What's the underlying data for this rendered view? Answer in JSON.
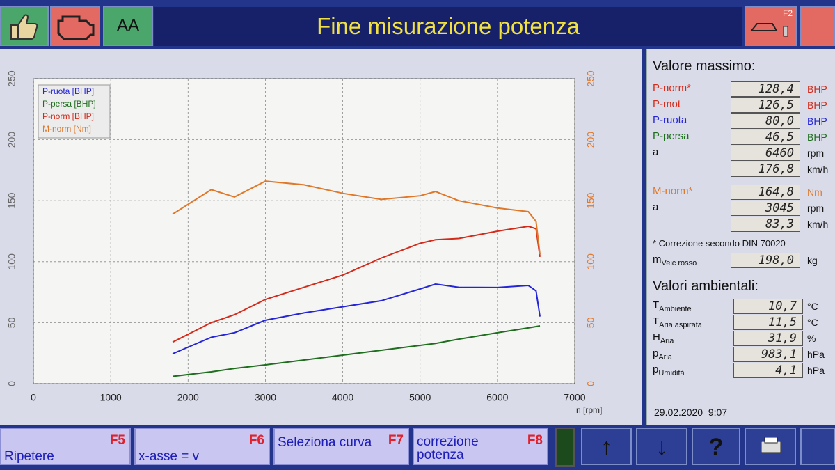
{
  "header": {
    "title": "Fine misurazione potenza",
    "button_label": "AA",
    "f2": "F2"
  },
  "chart_data": {
    "type": "line",
    "x_label": "n [rpm]",
    "x": [
      1800,
      2300,
      2600,
      3000,
      3500,
      4000,
      4500,
      5000,
      5200,
      5500,
      6000,
      6400,
      6500,
      6550
    ],
    "series": [
      {
        "name": "P-ruota [BHP]",
        "color": "#2424d8",
        "values": [
          24.5,
          38,
          41.7,
          52,
          58,
          63,
          68,
          77.6,
          81.6,
          79,
          78.8,
          80.5,
          76,
          55
        ]
      },
      {
        "name": "P-persa [BHP]",
        "color": "#1e6e1e",
        "values": [
          6,
          9.7,
          12.5,
          15.4,
          19.4,
          23.4,
          27.4,
          31.4,
          33,
          36.5,
          41.7,
          45.7,
          46.8,
          47.4
        ]
      },
      {
        "name": "P-norm [BHP]",
        "color": "#d42a1a",
        "values": [
          34,
          50,
          56.5,
          69,
          79,
          89,
          103,
          115,
          118,
          119,
          125,
          129,
          127,
          104
        ]
      },
      {
        "name": "M-norm [Nm]",
        "color": "#e0782a",
        "axis": "y2",
        "values": [
          139,
          159,
          153,
          166,
          163,
          156,
          151,
          154,
          157.5,
          150,
          144,
          141,
          133,
          106
        ]
      }
    ],
    "xlim": [
      0,
      7000
    ],
    "xticks": [
      0,
      1000,
      2000,
      3000,
      4000,
      5000,
      6000,
      7000
    ],
    "ylim": [
      0,
      250
    ],
    "yticks": [
      0,
      50,
      100,
      150,
      200,
      250
    ],
    "y2lim": [
      0,
      250
    ],
    "y2ticks": [
      0,
      50,
      100,
      150,
      200,
      250
    ],
    "grid": true,
    "legend": "upper left"
  },
  "panel": {
    "max_title": "Valore massimo:",
    "max_rows": [
      {
        "label": "P-norm*",
        "value": "128,4",
        "unit": "BHP",
        "color": "#d42a1a"
      },
      {
        "label": "P-mot",
        "value": "126,5",
        "unit": "BHP",
        "color": "#d42a1a"
      },
      {
        "label": "P-ruota",
        "value": "80,0",
        "unit": "BHP",
        "color": "#2424d8"
      },
      {
        "label": "P-persa",
        "value": "46,5",
        "unit": "BHP",
        "color": "#1e6e1e"
      },
      {
        "label": "a",
        "value": "6460",
        "unit": "rpm",
        "color": "#111111"
      },
      {
        "value": "176,8",
        "unit": "km/h",
        "color": "#111111"
      },
      {
        "label": "M-norm*",
        "value": "164,8",
        "unit": "Nm",
        "color": "#e0782a"
      },
      {
        "label": "a",
        "value": "3045",
        "unit": "rpm",
        "color": "#111111"
      },
      {
        "value": "83,3",
        "unit": "km/h",
        "color": "#111111"
      }
    ],
    "note": "* Correzione secondo DIN 70020",
    "mass": {
      "label": "m",
      "sub": "Veic rosso",
      "value": "198,0",
      "unit": "kg"
    },
    "env_title": "Valori ambientali:",
    "env_rows": [
      {
        "label": "T",
        "sub": "Ambiente",
        "value": "10,7",
        "unit": "°C"
      },
      {
        "label": "T",
        "sub": "Aria aspirata",
        "value": "11,5",
        "unit": "°C"
      },
      {
        "label": "H",
        "sub": "Aria",
        "value": "31,9",
        "unit": "%"
      },
      {
        "label": "p",
        "sub": "Aria",
        "value": "983,1",
        "unit": "hPa"
      },
      {
        "label": "p",
        "sub": "Umidità",
        "value": "4,1",
        "unit": "hPa"
      }
    ],
    "timestamp": "29.02.2020  9:07"
  },
  "footer": {
    "buttons": [
      {
        "label": "Ripetere",
        "key": "F5"
      },
      {
        "label": "x-asse = v",
        "key": "F6"
      },
      {
        "label": "Seleziona curva",
        "key": "F7"
      },
      {
        "label": "correzione potenza",
        "key": "F8"
      }
    ]
  }
}
